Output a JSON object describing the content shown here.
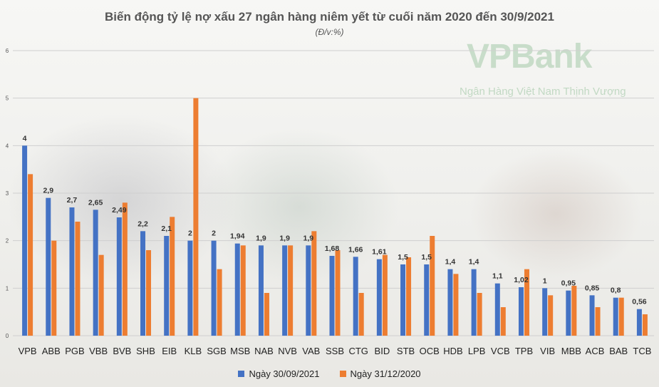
{
  "title": "Biến động tỷ lệ nợ xấu 27 ngân hàng niêm yết từ cuối năm 2020 đến 30/9/2021",
  "subtitle": "(Đ/v:%)",
  "watermark": {
    "brand": "VPBank",
    "tagline": "Ngân Hàng Việt Nam Thịnh Vượng"
  },
  "colors": {
    "series1": "#4472c4",
    "series2": "#ed7d31",
    "grid": "#cfcfcf",
    "axis_text": "#555555"
  },
  "chart_data": {
    "type": "bar",
    "title": "Biến động tỷ lệ nợ xấu 27 ngân hàng niêm yết từ cuối năm 2020 đến 30/9/2021",
    "subtitle": "(Đ/v:%)",
    "xlabel": "",
    "ylabel": "",
    "ylim": [
      0,
      6
    ],
    "yticks": [
      0,
      1,
      2,
      3,
      4,
      5,
      6
    ],
    "grid": true,
    "legend_position": "bottom",
    "categories": [
      "VPB",
      "ABB",
      "PGB",
      "VBB",
      "BVB",
      "SHB",
      "EIB",
      "KLB",
      "SGB",
      "MSB",
      "NAB",
      "NVB",
      "VAB",
      "SSB",
      "CTG",
      "BID",
      "STB",
      "OCB",
      "HDB",
      "LPB",
      "VCB",
      "TPB",
      "VIB",
      "MBB",
      "ACB",
      "BAB",
      "TCB"
    ],
    "series": [
      {
        "name": "Ngày 30/09/2021",
        "values": [
          4,
          2.9,
          2.7,
          2.65,
          2.49,
          2.2,
          2.1,
          2,
          2,
          1.94,
          1.9,
          1.9,
          1.9,
          1.68,
          1.66,
          1.61,
          1.5,
          1.5,
          1.4,
          1.4,
          1.1,
          1.02,
          1,
          0.95,
          0.85,
          0.8,
          0.56
        ],
        "labels": [
          "4",
          "2,9",
          "2,7",
          "2,65",
          "2,49",
          "2,2",
          "2,1",
          "2",
          "2",
          "1,94",
          "1,9",
          "1,9",
          "1,9",
          "1,68",
          "1,66",
          "1,61",
          "1,5",
          "1,5",
          "1,4",
          "1,4",
          "1,1",
          "1,02",
          "1",
          "0,95",
          "0,85",
          "0,8",
          "0,56"
        ]
      },
      {
        "name": "Ngày 31/12/2020",
        "values": [
          3.4,
          2.0,
          2.4,
          1.7,
          2.8,
          1.8,
          2.5,
          5.0,
          1.4,
          1.9,
          0.9,
          1.9,
          2.2,
          1.8,
          0.9,
          1.7,
          1.65,
          2.1,
          1.3,
          0.9,
          0.6,
          1.4,
          0.85,
          1.05,
          0.6,
          0.8,
          0.45
        ]
      }
    ]
  }
}
